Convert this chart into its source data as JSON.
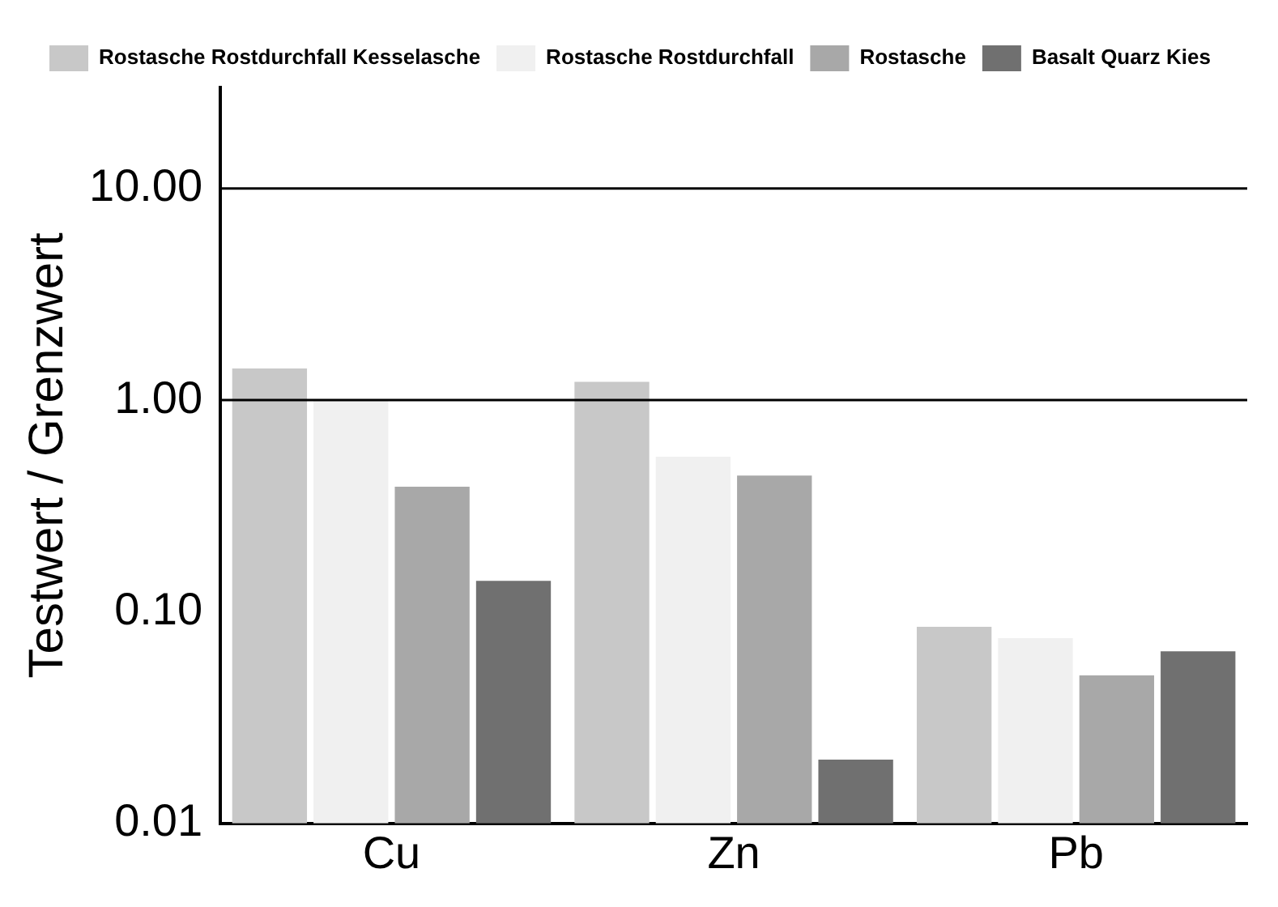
{
  "chart_data": {
    "type": "bar",
    "ylabel": "Testwert / Grenzwert",
    "categories": [
      "Cu",
      "Zn",
      "Pb"
    ],
    "log": "y",
    "ylim": [
      0.01,
      30
    ],
    "yticks": [
      {
        "value": 0.01,
        "label": "0.01"
      },
      {
        "value": 0.1,
        "label": "0.10"
      },
      {
        "value": 1,
        "label": "1.00"
      },
      {
        "value": 10,
        "label": "10.00"
      }
    ],
    "ref_lines": [
      {
        "axis": "y",
        "value": 1
      },
      {
        "axis": "y",
        "value": 10
      }
    ],
    "legend": "top",
    "grid": false,
    "series": [
      {
        "name": "Rostasche Rostdurchfall Kesselasche",
        "color": "#c8c8c8",
        "values": [
          1.41,
          1.22,
          0.085
        ]
      },
      {
        "name": "Rostasche Rostdurchfall",
        "color": "#f0f0f0",
        "values": [
          1.0,
          0.54,
          0.075
        ]
      },
      {
        "name": "Rostasche",
        "color": "#a8a8a8",
        "values": [
          0.39,
          0.44,
          0.05
        ]
      },
      {
        "name": "Basalt Quarz Kies",
        "color": "#707070",
        "values": [
          0.14,
          0.02,
          0.065
        ]
      }
    ]
  }
}
